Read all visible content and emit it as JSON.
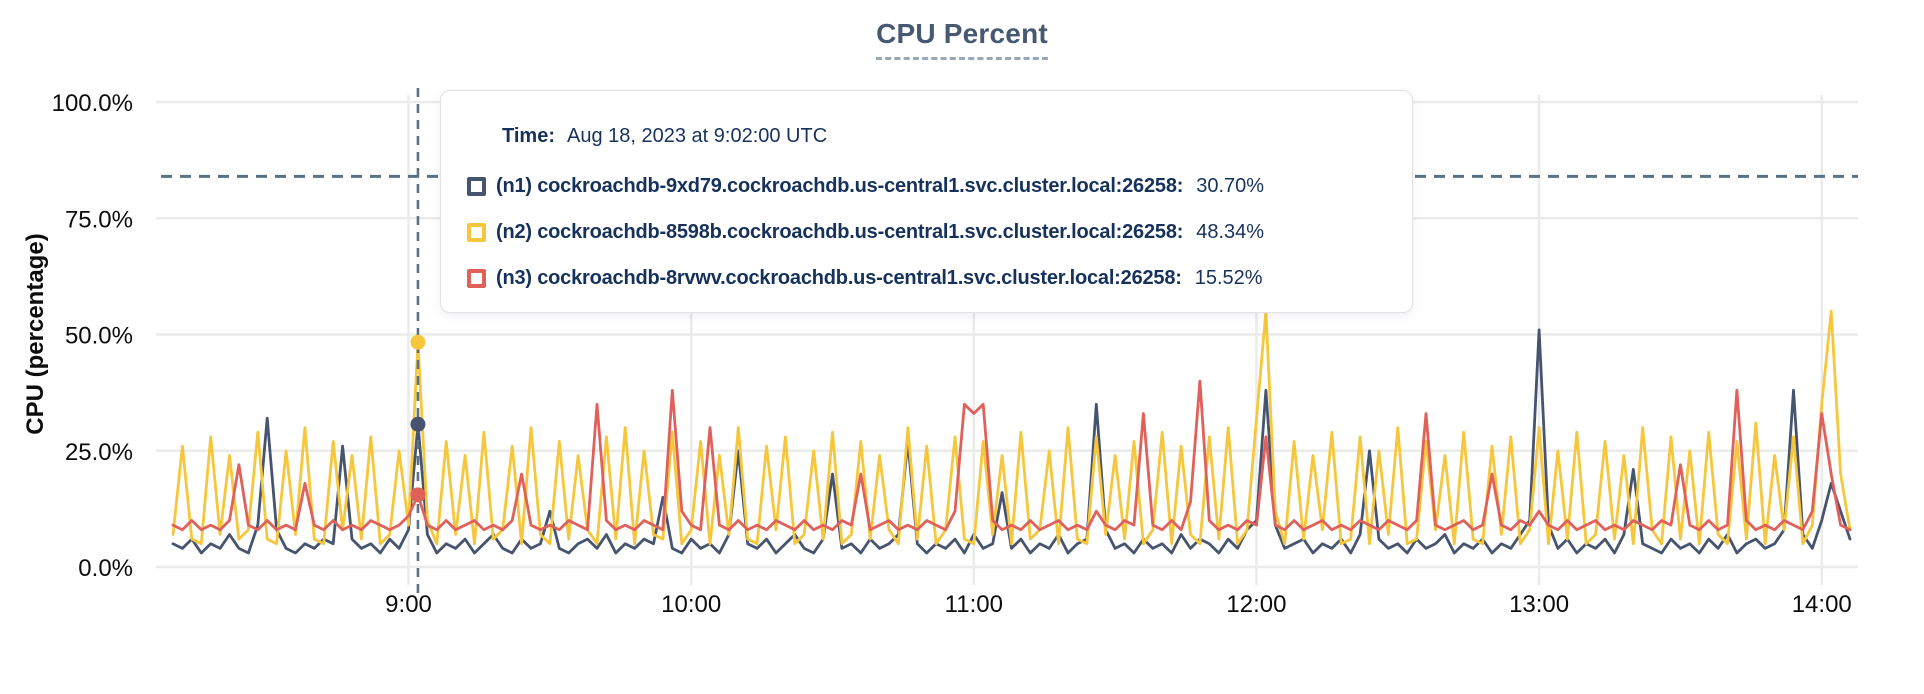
{
  "chart_data": {
    "type": "line",
    "title": "CPU Percent",
    "ylabel": "CPU (percentage)",
    "ylim": [
      0,
      100
    ],
    "grid": true,
    "colors": {
      "grid": "#ebebeb",
      "dashed": "#5a7284",
      "axis_text": "#0c0c0c"
    },
    "y_ticks": [
      {
        "value": 0,
        "label": "0.0%"
      },
      {
        "value": 25,
        "label": "25.0%"
      },
      {
        "value": 50,
        "label": "50.0%"
      },
      {
        "value": 75,
        "label": "75.0%"
      },
      {
        "value": 100,
        "label": "100.0%"
      }
    ],
    "x_ticks": [
      {
        "minutes": 540,
        "label": "9:00"
      },
      {
        "minutes": 600,
        "label": "10:00"
      },
      {
        "minutes": 660,
        "label": "11:00"
      },
      {
        "minutes": 720,
        "label": "12:00"
      },
      {
        "minutes": 780,
        "label": "13:00"
      },
      {
        "minutes": 840,
        "label": "14:00"
      }
    ],
    "x_range": {
      "start_minutes": 490,
      "end_minutes": 846,
      "step_minutes": 2
    },
    "threshold": {
      "value_pct": 84
    },
    "crosshair": {
      "time_label": "9:02",
      "minutes": 542
    },
    "series": [
      {
        "id": "n1",
        "name": "(n1) cockroachdb-9xd79.cockroachdb.us-central1.svc.cluster.local:26258",
        "color": "#46546f",
        "hover_value_pct": 30.7,
        "values": [
          5,
          4,
          6,
          3,
          5,
          4,
          7,
          4,
          3,
          9,
          32,
          8,
          4,
          3,
          5,
          4,
          6,
          5,
          26,
          6,
          4,
          5,
          3,
          6,
          4,
          8,
          30.7,
          7,
          3,
          5,
          4,
          6,
          3,
          5,
          7,
          4,
          3,
          6,
          4,
          5,
          12,
          4,
          3,
          5,
          6,
          4,
          7,
          3,
          5,
          4,
          6,
          5,
          15,
          4,
          3,
          6,
          4,
          5,
          3,
          7,
          25,
          5,
          4,
          6,
          3,
          5,
          7,
          4,
          3,
          6,
          20,
          4,
          5,
          3,
          6,
          4,
          5,
          7,
          27,
          5,
          3,
          5,
          4,
          6,
          3,
          7,
          4,
          5,
          16,
          4,
          6,
          3,
          5,
          4,
          7,
          3,
          5,
          6,
          35,
          8,
          4,
          5,
          3,
          6,
          4,
          5,
          3,
          7,
          4,
          6,
          5,
          3,
          6,
          4,
          8,
          10,
          38,
          9,
          4,
          5,
          6,
          3,
          5,
          4,
          6,
          3,
          7,
          25,
          6,
          4,
          5,
          3,
          6,
          4,
          5,
          7,
          3,
          5,
          4,
          6,
          3,
          5,
          4,
          7,
          10,
          51,
          9,
          4,
          6,
          3,
          5,
          4,
          6,
          3,
          7,
          21,
          5,
          4,
          3,
          6,
          4,
          5,
          3,
          6,
          4,
          7,
          3,
          5,
          6,
          4,
          5,
          8,
          38,
          7,
          4,
          10,
          18,
          12,
          6
        ]
      },
      {
        "id": "n2",
        "name": "(n2) cockroachdb-8598b.cockroachdb.us-central1.svc.cluster.local:26258",
        "color": "#f6c73c",
        "hover_value_pct": 48.34,
        "values": [
          7,
          26,
          6,
          5,
          28,
          7,
          24,
          6,
          8,
          29,
          6,
          5,
          25,
          7,
          30,
          6,
          5,
          27,
          8,
          24,
          6,
          28,
          5,
          7,
          25,
          9,
          48.34,
          10,
          5,
          27,
          7,
          24,
          5,
          29,
          6,
          8,
          26,
          5,
          30,
          7,
          5,
          27,
          6,
          24,
          8,
          5,
          28,
          6,
          30,
          5,
          25,
          7,
          6,
          29,
          5,
          8,
          27,
          5,
          24,
          7,
          30,
          6,
          5,
          26,
          8,
          28,
          5,
          7,
          25,
          6,
          29,
          5,
          7,
          27,
          6,
          24,
          8,
          5,
          30,
          6,
          26,
          5,
          8,
          28,
          6,
          5,
          27,
          7,
          24,
          5,
          29,
          6,
          8,
          25,
          5,
          30,
          6,
          5,
          28,
          7,
          24,
          6,
          27,
          5,
          8,
          29,
          5,
          26,
          7,
          5,
          28,
          6,
          30,
          5,
          8,
          32,
          55,
          12,
          5,
          27,
          6,
          24,
          8,
          29,
          5,
          6,
          28,
          5,
          25,
          7,
          30,
          5,
          6,
          27,
          8,
          24,
          5,
          29,
          6,
          5,
          26,
          7,
          28,
          5,
          8,
          30,
          5,
          25,
          6,
          29,
          5,
          7,
          27,
          6,
          24,
          5,
          30,
          8,
          5,
          28,
          6,
          25,
          5,
          29,
          7,
          5,
          27,
          6,
          31,
          5,
          24,
          8,
          28,
          5,
          9,
          35,
          55,
          20,
          8
        ]
      },
      {
        "id": "n3",
        "name": "(n3) cockroachdb-8rvwv.cockroachdb.us-central1.svc.cluster.local:26258",
        "color": "#e0605a",
        "hover_value_pct": 15.52,
        "values": [
          9,
          8,
          10,
          8,
          9,
          8,
          10,
          22,
          9,
          8,
          10,
          8,
          9,
          8,
          18,
          9,
          8,
          10,
          8,
          9,
          8,
          10,
          9,
          8,
          9,
          11,
          15.52,
          9,
          8,
          10,
          8,
          9,
          10,
          8,
          9,
          8,
          10,
          20,
          9,
          8,
          9,
          8,
          10,
          9,
          8,
          35,
          10,
          8,
          9,
          8,
          10,
          9,
          8,
          38,
          12,
          9,
          8,
          30,
          9,
          8,
          10,
          8,
          9,
          8,
          10,
          9,
          8,
          10,
          8,
          9,
          8,
          10,
          9,
          20,
          8,
          9,
          10,
          8,
          9,
          8,
          10,
          9,
          8,
          12,
          35,
          33,
          35,
          10,
          8,
          9,
          8,
          10,
          8,
          9,
          10,
          8,
          9,
          8,
          12,
          9,
          8,
          10,
          9,
          33,
          9,
          8,
          10,
          8,
          14,
          40,
          10,
          8,
          9,
          8,
          10,
          9,
          28,
          9,
          8,
          10,
          8,
          9,
          10,
          8,
          9,
          8,
          10,
          9,
          8,
          10,
          9,
          8,
          10,
          33,
          9,
          8,
          9,
          10,
          8,
          9,
          20,
          9,
          8,
          10,
          9,
          12,
          9,
          8,
          10,
          8,
          9,
          10,
          8,
          9,
          8,
          10,
          9,
          8,
          10,
          9,
          22,
          9,
          8,
          10,
          8,
          9,
          38,
          10,
          8,
          9,
          8,
          10,
          9,
          8,
          12,
          33,
          20,
          9,
          8
        ]
      }
    ]
  },
  "tooltip": {
    "time_label": "Time:",
    "time_value": "Aug 18, 2023 at 9:02:00 UTC",
    "rows": [
      {
        "label": "(n1) cockroachdb-9xd79.cockroachdb.us-central1.svc.cluster.local:26258:",
        "value": "30.70%"
      },
      {
        "label": "(n2) cockroachdb-8598b.cockroachdb.us-central1.svc.cluster.local:26258:",
        "value": "48.34%"
      },
      {
        "label": "(n3) cockroachdb-8rvwv.cockroachdb.us-central1.svc.cluster.local:26258:",
        "value": "15.52%"
      }
    ]
  }
}
